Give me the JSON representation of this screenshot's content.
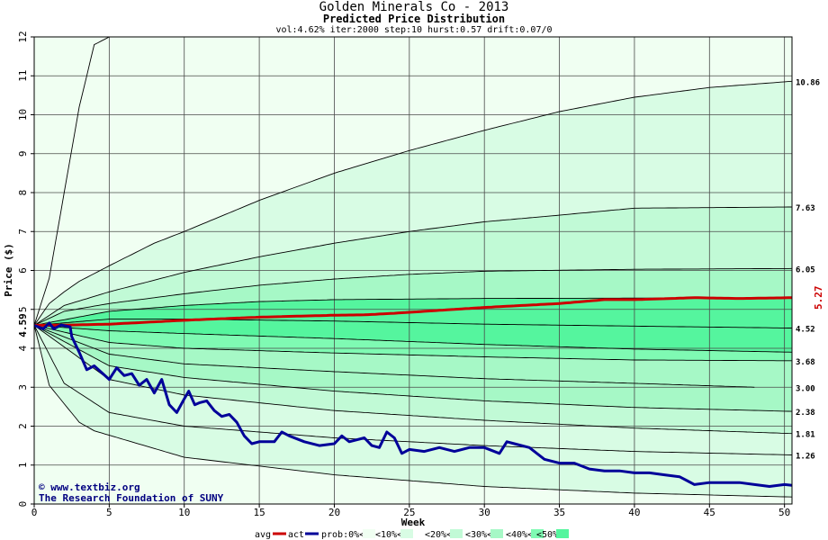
{
  "chart_data": {
    "type": "area",
    "title": "Golden Minerals Co - 2013",
    "subtitle": "Predicted Price Distribution",
    "params": "vol:4.62% iter:2000 step:10 hurst:0.57 drift:0.07/0",
    "xlabel": "Week",
    "ylabel": "Price ($)",
    "xlim": [
      0,
      50.5
    ],
    "ylim": [
      0,
      12
    ],
    "x_ticks": [
      "0",
      "5",
      "10",
      "15",
      "20",
      "25",
      "30",
      "35",
      "40",
      "45",
      "50"
    ],
    "y_ticks": [
      "0",
      "1",
      "2",
      "3",
      "4",
      "5",
      "6",
      "7",
      "8",
      "9",
      "10",
      "11",
      "12"
    ],
    "grid": true,
    "start_price": "4.59",
    "start_x": 0.3,
    "avg_end_label": "5.27",
    "credits": [
      "© www.textbiz.org",
      "The Research Foundation of SUNY"
    ],
    "legend": {
      "placement": "bottom",
      "avg": "avg",
      "act": "act",
      "prob_bins": [
        "prob:0%<",
        "<10%<",
        "<20%<",
        "<30%<",
        "<40%<",
        "<50%"
      ]
    },
    "colors": {
      "avg_line": "#cc0000",
      "actual_line": "#000099",
      "bands": [
        "#f0fff2",
        "#d8fce4",
        "#c1fad6",
        "#a6f8c6",
        "#7ffab3",
        "#55f59e"
      ],
      "grid": "#4a4a4a",
      "percentile_line": "#000000"
    },
    "percentile_curves": [
      {
        "name": "upper-0",
        "end_label": "",
        "points": [
          [
            0,
            4.59
          ],
          [
            1,
            5.8
          ],
          [
            2,
            8.0
          ],
          [
            3,
            10.2
          ],
          [
            4,
            11.8
          ],
          [
            5,
            12.0
          ]
        ]
      },
      {
        "name": "upper-10",
        "end_label": "10.86",
        "points": [
          [
            0,
            4.59
          ],
          [
            1,
            5.15
          ],
          [
            2,
            5.45
          ],
          [
            3,
            5.72
          ],
          [
            5,
            6.12
          ],
          [
            8,
            6.7
          ],
          [
            10,
            7.0
          ],
          [
            15,
            7.8
          ],
          [
            20,
            8.5
          ],
          [
            25,
            9.08
          ],
          [
            30,
            9.6
          ],
          [
            35,
            10.08
          ],
          [
            40,
            10.45
          ],
          [
            45,
            10.7
          ],
          [
            50.5,
            10.86
          ]
        ]
      },
      {
        "name": "upper-20",
        "end_label": "7.63",
        "points": [
          [
            0,
            4.59
          ],
          [
            2,
            5.1
          ],
          [
            5,
            5.45
          ],
          [
            10,
            5.95
          ],
          [
            15,
            6.35
          ],
          [
            20,
            6.7
          ],
          [
            25,
            7.0
          ],
          [
            30,
            7.25
          ],
          [
            35,
            7.42
          ],
          [
            40,
            7.6
          ],
          [
            50.5,
            7.63
          ]
        ]
      },
      {
        "name": "upper-30",
        "end_label": "6.05",
        "points": [
          [
            0,
            4.59
          ],
          [
            2,
            4.95
          ],
          [
            5,
            5.15
          ],
          [
            10,
            5.4
          ],
          [
            15,
            5.62
          ],
          [
            20,
            5.78
          ],
          [
            25,
            5.9
          ],
          [
            30,
            5.98
          ],
          [
            40,
            6.03
          ],
          [
            50.5,
            6.05
          ]
        ]
      },
      {
        "name": "upper-40",
        "end_label": "",
        "points": [
          [
            0,
            4.59
          ],
          [
            5,
            4.95
          ],
          [
            10,
            5.1
          ],
          [
            15,
            5.2
          ],
          [
            20,
            5.25
          ],
          [
            30,
            5.28
          ],
          [
            50.5,
            5.3
          ]
        ]
      },
      {
        "name": "median",
        "end_label": "4.52",
        "points": [
          [
            0,
            4.59
          ],
          [
            5,
            4.75
          ],
          [
            10,
            4.75
          ],
          [
            20,
            4.7
          ],
          [
            30,
            4.62
          ],
          [
            40,
            4.57
          ],
          [
            50.5,
            4.52
          ]
        ]
      },
      {
        "name": "lower-40",
        "end_label": "",
        "points": [
          [
            0,
            4.59
          ],
          [
            5,
            4.45
          ],
          [
            10,
            4.38
          ],
          [
            20,
            4.25
          ],
          [
            30,
            4.1
          ],
          [
            40,
            3.98
          ],
          [
            50.5,
            3.9
          ]
        ]
      },
      {
        "name": "lower-30",
        "end_label": "3.68",
        "points": [
          [
            0,
            4.59
          ],
          [
            5,
            4.15
          ],
          [
            10,
            4.0
          ],
          [
            20,
            3.88
          ],
          [
            30,
            3.78
          ],
          [
            40,
            3.7
          ],
          [
            50.5,
            3.68
          ]
        ]
      },
      {
        "name": "lower-20",
        "end_label": "3.00",
        "points": [
          [
            0,
            4.59
          ],
          [
            5,
            3.85
          ],
          [
            10,
            3.6
          ],
          [
            20,
            3.4
          ],
          [
            30,
            3.22
          ],
          [
            40,
            3.1
          ],
          [
            48,
            3.0
          ]
        ]
      },
      {
        "name": "lower-10",
        "end_label": "2.38",
        "points": [
          [
            0,
            4.59
          ],
          [
            5,
            3.55
          ],
          [
            10,
            3.25
          ],
          [
            20,
            2.9
          ],
          [
            30,
            2.65
          ],
          [
            40,
            2.48
          ],
          [
            50.5,
            2.38
          ]
        ]
      },
      {
        "name": "lower-5",
        "end_label": "1.81",
        "points": [
          [
            0,
            4.59
          ],
          [
            5,
            3.2
          ],
          [
            10,
            2.8
          ],
          [
            20,
            2.4
          ],
          [
            30,
            2.15
          ],
          [
            40,
            1.95
          ],
          [
            50.5,
            1.81
          ]
        ]
      },
      {
        "name": "lower-0",
        "end_label": "1.26",
        "points": [
          [
            0,
            4.59
          ],
          [
            2,
            3.1
          ],
          [
            5,
            2.35
          ],
          [
            10,
            2.0
          ],
          [
            20,
            1.7
          ],
          [
            30,
            1.5
          ],
          [
            40,
            1.35
          ],
          [
            50.5,
            1.26
          ]
        ]
      },
      {
        "name": "lower-min",
        "end_label": "",
        "points": [
          [
            0,
            4.59
          ],
          [
            1,
            3.05
          ],
          [
            3,
            2.1
          ],
          [
            4,
            1.88
          ],
          [
            10,
            1.2
          ],
          [
            20,
            0.75
          ],
          [
            30,
            0.45
          ],
          [
            40,
            0.28
          ],
          [
            50.5,
            0.18
          ]
        ]
      }
    ],
    "avg_series": [
      [
        0,
        4.59
      ],
      [
        2.5,
        4.6
      ],
      [
        5,
        4.62
      ],
      [
        10,
        4.72
      ],
      [
        15,
        4.8
      ],
      [
        20,
        4.85
      ],
      [
        22,
        4.86
      ],
      [
        24,
        4.9
      ],
      [
        26,
        4.95
      ],
      [
        30,
        5.05
      ],
      [
        35,
        5.15
      ],
      [
        38,
        5.25
      ],
      [
        40,
        5.25
      ],
      [
        44,
        5.3
      ],
      [
        47,
        5.28
      ],
      [
        50.5,
        5.3
      ]
    ],
    "actual_series": [
      [
        0,
        4.59
      ],
      [
        0.6,
        4.5
      ],
      [
        1,
        4.65
      ],
      [
        1.3,
        4.5
      ],
      [
        1.8,
        4.6
      ],
      [
        2.4,
        4.55
      ],
      [
        2.5,
        4.3
      ],
      [
        3,
        3.9
      ],
      [
        3.5,
        3.45
      ],
      [
        4,
        3.55
      ],
      [
        5,
        3.2
      ],
      [
        5.5,
        3.5
      ],
      [
        6,
        3.3
      ],
      [
        6.5,
        3.35
      ],
      [
        7,
        3.05
      ],
      [
        7.5,
        3.2
      ],
      [
        8,
        2.85
      ],
      [
        8.5,
        3.2
      ],
      [
        9,
        2.55
      ],
      [
        9.5,
        2.35
      ],
      [
        10,
        2.7
      ],
      [
        10.3,
        2.9
      ],
      [
        10.7,
        2.55
      ],
      [
        11,
        2.6
      ],
      [
        11.5,
        2.65
      ],
      [
        12,
        2.4
      ],
      [
        12.5,
        2.25
      ],
      [
        13,
        2.3
      ],
      [
        13.5,
        2.1
      ],
      [
        14,
        1.75
      ],
      [
        14.5,
        1.55
      ],
      [
        15,
        1.6
      ],
      [
        16,
        1.6
      ],
      [
        16.5,
        1.85
      ],
      [
        17,
        1.75
      ],
      [
        18,
        1.6
      ],
      [
        19,
        1.5
      ],
      [
        20,
        1.55
      ],
      [
        20.5,
        1.75
      ],
      [
        21,
        1.6
      ],
      [
        22,
        1.7
      ],
      [
        22.5,
        1.5
      ],
      [
        23,
        1.45
      ],
      [
        23.5,
        1.85
      ],
      [
        24,
        1.7
      ],
      [
        24.5,
        1.3
      ],
      [
        25,
        1.4
      ],
      [
        26,
        1.35
      ],
      [
        27,
        1.45
      ],
      [
        28,
        1.35
      ],
      [
        29,
        1.45
      ],
      [
        30,
        1.45
      ],
      [
        31,
        1.3
      ],
      [
        31.5,
        1.6
      ],
      [
        32,
        1.55
      ],
      [
        33,
        1.45
      ],
      [
        34,
        1.15
      ],
      [
        35,
        1.05
      ],
      [
        36,
        1.05
      ],
      [
        37,
        0.9
      ],
      [
        38,
        0.85
      ],
      [
        39,
        0.85
      ],
      [
        40,
        0.8
      ],
      [
        41,
        0.8
      ],
      [
        42,
        0.75
      ],
      [
        43,
        0.7
      ],
      [
        43.5,
        0.6
      ],
      [
        44,
        0.5
      ],
      [
        45,
        0.55
      ],
      [
        46,
        0.55
      ],
      [
        47,
        0.55
      ],
      [
        48,
        0.5
      ],
      [
        49,
        0.45
      ],
      [
        50,
        0.5
      ],
      [
        50.5,
        0.48
      ]
    ]
  }
}
